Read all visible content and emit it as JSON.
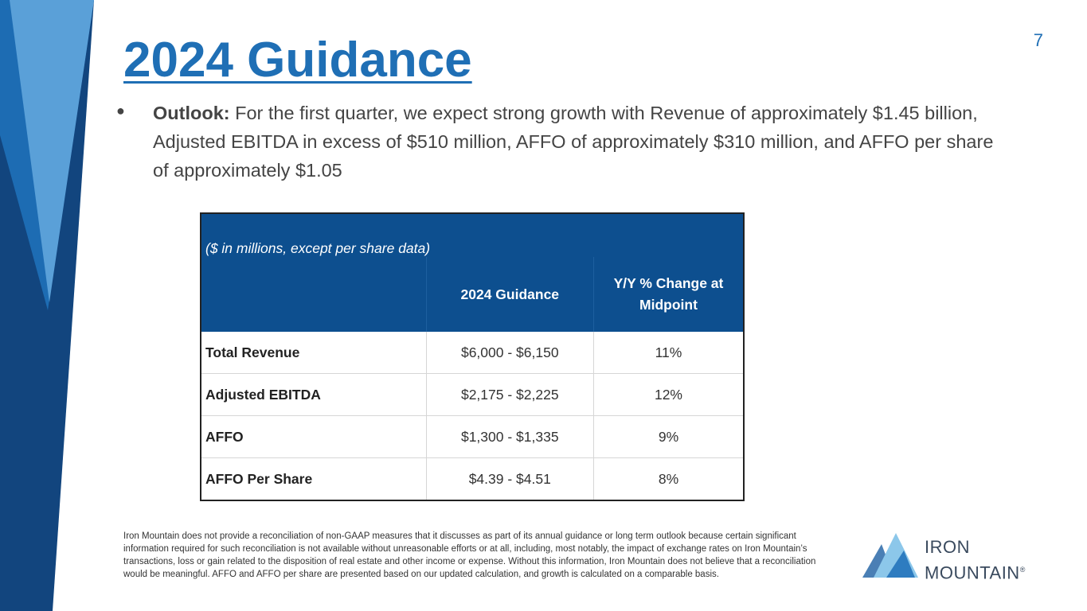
{
  "slide": {
    "page_number": "7",
    "title": "2024 Guidance",
    "bullet": {
      "lead": "Outlook:",
      "text": " For the first quarter, we expect strong growth with Revenue of approximately $1.45 billion, Adjusted EBITDA in excess of $510 million, AFFO of approximately $310 million, and AFFO per share of approximately $1.05"
    },
    "colors": {
      "brand_blue": "#1f6fb5",
      "table_header": "#0d4f8f",
      "deco_dark": "#12457e",
      "deco_light": "#5aa0d8"
    }
  },
  "table": {
    "caption": "($ in millions, except per share data)",
    "columns": [
      "",
      "2024 Guidance",
      "Y/Y % Change at Midpoint"
    ],
    "rows": [
      [
        "Total Revenue",
        "$6,000 - $6,150",
        "11%"
      ],
      [
        "Adjusted EBITDA",
        "$2,175 - $2,225",
        "12%"
      ],
      [
        "AFFO",
        "$1,300 - $1,335",
        "9%"
      ],
      [
        "AFFO Per Share",
        "$4.39 - $4.51",
        "8%"
      ]
    ]
  },
  "footnote": "Iron Mountain does not provide a reconciliation of non-GAAP measures that it discusses as part of its annual guidance or long term outlook because certain significant information required for such reconciliation is not available without unreasonable efforts or at all, including, most notably, the impact of exchange rates on Iron Mountain’s transactions, loss or gain related to the disposition of real estate and other income or expense. Without this information, Iron Mountain does not believe that a reconciliation would be meaningful. AFFO and AFFO per share are presented based on our updated calculation, and growth is calculated on a comparable basis.",
  "logo": {
    "line1": "IRON",
    "line2": "MOUNTAIN",
    "mark": "®",
    "icon": "mountain-logo-icon"
  }
}
